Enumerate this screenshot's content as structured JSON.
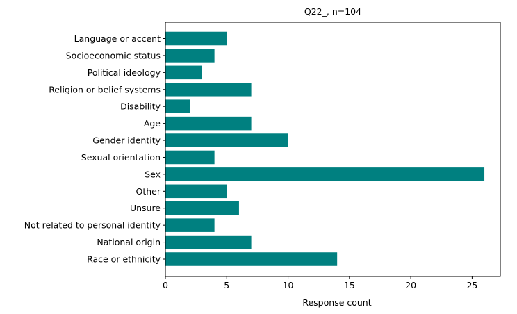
{
  "chart_data": {
    "type": "bar",
    "orientation": "horizontal",
    "title": "Q22_, n=104",
    "xlabel": "Response count",
    "ylabel": "",
    "categories": [
      "Language or accent",
      "Socioeconomic status",
      "Political ideology",
      "Religion or belief systems",
      "Disability",
      "Age",
      "Gender identity",
      "Sexual orientation",
      "Sex",
      "Other",
      "Unsure",
      "Not related to personal identity",
      "National origin",
      "Race or ethnicity"
    ],
    "values": [
      5,
      4,
      3,
      7,
      2,
      7,
      10,
      4,
      26,
      5,
      6,
      4,
      7,
      14
    ],
    "xlim": [
      0,
      27.3
    ],
    "xticks": [
      0,
      5,
      10,
      15,
      20,
      25
    ],
    "xtick_labels": [
      "0",
      "5",
      "10",
      "15",
      "20",
      "25"
    ],
    "bar_color": "#008080",
    "grid": false,
    "legend": "none"
  }
}
